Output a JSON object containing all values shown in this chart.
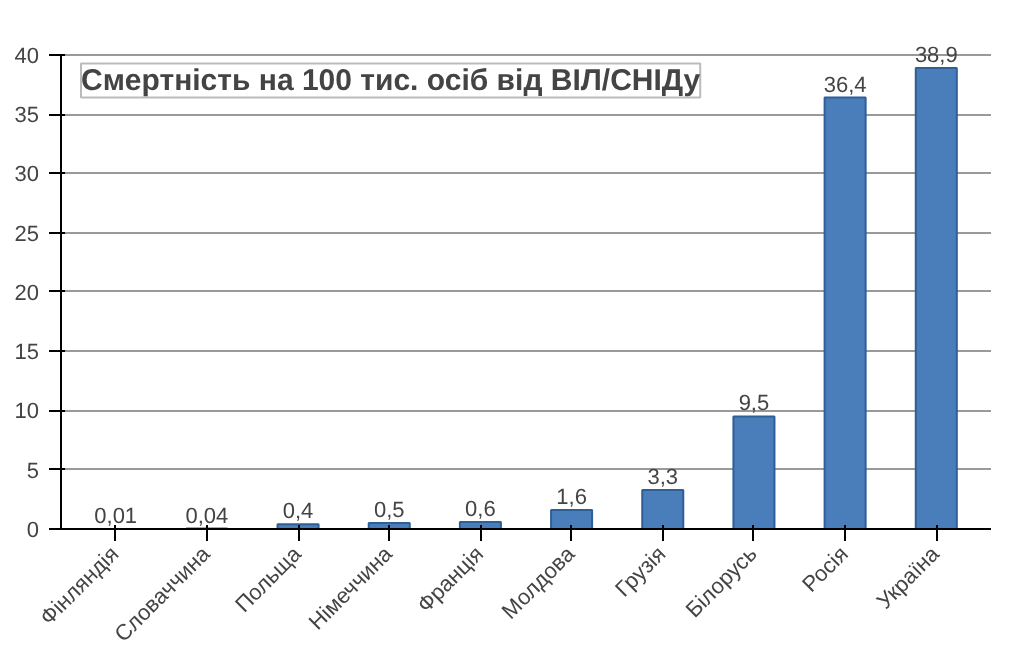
{
  "chart_data": {
    "type": "bar",
    "title": "Смертність на 100 тис. осіб від ВІЛ/СНІДу",
    "categories": [
      "Фінляндія",
      "Словаччина",
      "Польща",
      "Німеччина",
      "Франція",
      "Молдова",
      "Грузія",
      "Білорусь",
      "Росія",
      "Україна"
    ],
    "values": [
      0.01,
      0.04,
      0.4,
      0.5,
      0.6,
      1.6,
      3.3,
      9.5,
      36.4,
      38.9
    ],
    "value_labels": [
      "0,01",
      "0,04",
      "0,4",
      "0,5",
      "0,6",
      "1,6",
      "3,3",
      "9,5",
      "36,4",
      "38,9"
    ],
    "color": "#4a7ebb",
    "ylim": [
      0,
      40
    ],
    "yticks": [
      0,
      5,
      10,
      15,
      20,
      25,
      30,
      35,
      40
    ],
    "grid": "y"
  }
}
